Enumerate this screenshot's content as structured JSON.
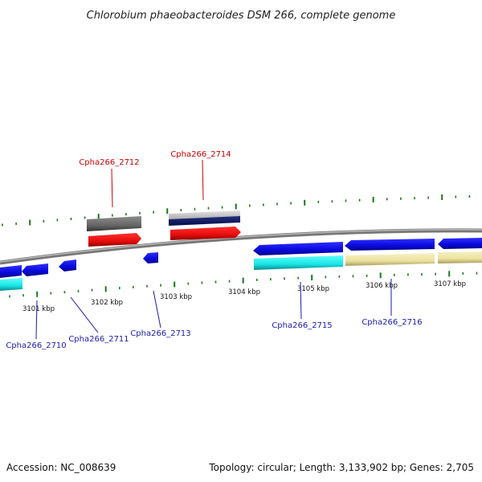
{
  "title": "Chlorobium phaeobacteroides DSM 266, complete genome",
  "footer": {
    "accession": "Accession: NC_008639",
    "summary": "Topology: circular; Length: 3,133,902 bp; Genes: 2,705"
  },
  "colors": {
    "backbone": "#8c8c8c",
    "tick": "#1a7a1a",
    "gene_blue": "#1010e6",
    "gene_red": "#ee1010",
    "gene_cyan": "#22eeee",
    "gene_khaki": "#efe7a8",
    "gene_gray": "#707070",
    "gene_lightgray": "#c8c8c8",
    "gene_navy": "#0c1a78",
    "label_red": "#cc0000",
    "label_blue": "#1a1ab0"
  },
  "scale_labels": [
    "3101 kbp",
    "3102 kbp",
    "3103 kbp",
    "3104 kbp",
    "3105 kbp",
    "3106 kbp",
    "3107 kbp"
  ],
  "gene_labels": {
    "top": [
      "Cpha266_2712",
      "Cpha266_2714"
    ],
    "bottom": [
      "Cpha266_2710",
      "Cpha266_2711",
      "Cpha266_2713",
      "Cpha266_2715",
      "Cpha266_2716"
    ]
  }
}
